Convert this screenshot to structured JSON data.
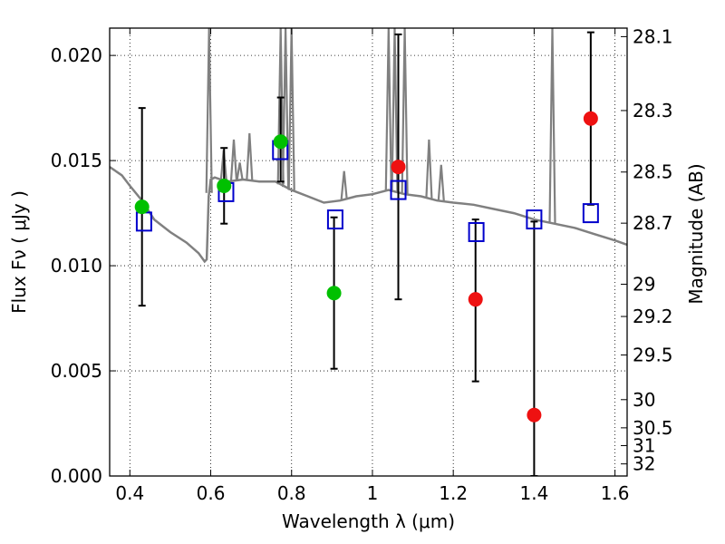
{
  "chart_data": {
    "type": "scatter",
    "xlabel": "Wavelength  λ (μm)",
    "ylabel": "Flux  Fν  ( μJy )",
    "ylabel_right": "Magnitude (AB)",
    "xlim": [
      0.35,
      1.63
    ],
    "ylim": [
      0.0,
      0.0213
    ],
    "x_ticks": [
      0.4,
      0.6,
      0.8,
      1.0,
      1.2,
      1.4,
      1.6
    ],
    "x_tick_labels": [
      "0.4",
      "0.6",
      "0.8",
      "1",
      "1.2",
      "1.4",
      "1.6"
    ],
    "y_ticks": [
      0.0,
      0.005,
      0.01,
      0.015,
      0.02
    ],
    "y_tick_labels": [
      "0.000",
      "0.005",
      "0.010",
      "0.015",
      "0.020"
    ],
    "right_ticks": [
      {
        "mag": 28.1,
        "label": "28.1"
      },
      {
        "mag": 28.3,
        "label": "28.3"
      },
      {
        "mag": 28.5,
        "label": "28.5"
      },
      {
        "mag": 28.7,
        "label": "28.7"
      },
      {
        "mag": 29.0,
        "label": "29"
      },
      {
        "mag": 29.2,
        "label": "29.2"
      },
      {
        "mag": 29.5,
        "label": "29.5"
      },
      {
        "mag": 30.0,
        "label": "30"
      },
      {
        "mag": 30.5,
        "label": "30.5"
      },
      {
        "mag": 31.0,
        "label": "31"
      },
      {
        "mag": 32.0,
        "label": "32"
      }
    ],
    "grid": true,
    "colors": {
      "spectrum": "#808080",
      "detection": "#00c000",
      "upper_limit": "#ee1111",
      "model": "#0000cc",
      "errorbar": "#000000"
    },
    "spectrum": {
      "x": [
        0.35,
        0.38,
        0.4,
        0.43,
        0.46,
        0.5,
        0.54,
        0.57,
        0.585,
        0.59,
        0.595,
        0.6,
        0.61,
        0.64,
        0.68,
        0.72,
        0.76,
        0.8,
        0.84,
        0.88,
        0.92,
        0.96,
        1.0,
        1.04,
        1.08,
        1.12,
        1.16,
        1.2,
        1.25,
        1.3,
        1.35,
        1.4,
        1.45,
        1.5,
        1.55,
        1.6,
        1.63
      ],
      "y": [
        0.0147,
        0.0143,
        0.0138,
        0.0131,
        0.0122,
        0.0116,
        0.0111,
        0.0106,
        0.0102,
        0.0103,
        0.0133,
        0.0141,
        0.0142,
        0.014,
        0.0141,
        0.014,
        0.014,
        0.0136,
        0.0133,
        0.013,
        0.0131,
        0.0133,
        0.0134,
        0.0136,
        0.0134,
        0.0133,
        0.0131,
        0.013,
        0.0129,
        0.0127,
        0.0125,
        0.0122,
        0.012,
        0.0118,
        0.0115,
        0.0112,
        0.011
      ]
    },
    "emission_lines": [
      {
        "x": 0.596,
        "peak": 0.0213
      },
      {
        "x": 0.632,
        "peak": 0.0155
      },
      {
        "x": 0.657,
        "peak": 0.016
      },
      {
        "x": 0.672,
        "peak": 0.0149
      },
      {
        "x": 0.696,
        "peak": 0.0163
      },
      {
        "x": 0.773,
        "peak": 0.0213
      },
      {
        "x": 0.785,
        "peak": 0.0213
      },
      {
        "x": 0.8,
        "peak": 0.0213
      },
      {
        "x": 0.93,
        "peak": 0.0145
      },
      {
        "x": 1.04,
        "peak": 0.0213
      },
      {
        "x": 1.055,
        "peak": 0.0213
      },
      {
        "x": 1.08,
        "peak": 0.0213
      },
      {
        "x": 1.14,
        "peak": 0.016
      },
      {
        "x": 1.17,
        "peak": 0.0148
      },
      {
        "x": 1.445,
        "peak": 0.0213
      }
    ],
    "series": [
      {
        "marker": "circle",
        "points": [
          {
            "x": 0.43,
            "y": 0.0128,
            "color": "#00c000",
            "err_lo": 0.0081,
            "err_hi": 0.0175
          },
          {
            "x": 0.633,
            "y": 0.0138,
            "color": "#00c000",
            "err_lo": 0.012,
            "err_hi": 0.0156
          },
          {
            "x": 0.773,
            "y": 0.0159,
            "color": "#00c000",
            "err_lo": 0.014,
            "err_hi": 0.018
          },
          {
            "x": 0.905,
            "y": 0.0087,
            "color": "#00c000",
            "err_lo": 0.0051,
            "err_hi": 0.0123
          },
          {
            "x": 1.064,
            "y": 0.0147,
            "color": "#ee1111",
            "err_lo": 0.0084,
            "err_hi": 0.021
          },
          {
            "x": 1.255,
            "y": 0.0084,
            "color": "#ee1111",
            "err_lo": 0.0045,
            "err_hi": 0.0122
          },
          {
            "x": 1.4,
            "y": 0.0029,
            "color": "#ee1111",
            "err_lo": 0.0,
            "err_hi": 0.0121
          },
          {
            "x": 1.54,
            "y": 0.017,
            "color": "#ee1111",
            "err_lo": 0.0129,
            "err_hi": 0.0211
          }
        ]
      },
      {
        "marker": "square",
        "points": [
          {
            "x": 0.435,
            "y": 0.0121
          },
          {
            "x": 0.638,
            "y": 0.0135
          },
          {
            "x": 0.772,
            "y": 0.0155
          },
          {
            "x": 0.908,
            "y": 0.0122
          },
          {
            "x": 1.064,
            "y": 0.0136
          },
          {
            "x": 1.257,
            "y": 0.0116
          },
          {
            "x": 1.4,
            "y": 0.0122
          },
          {
            "x": 1.54,
            "y": 0.0125
          }
        ]
      }
    ]
  }
}
